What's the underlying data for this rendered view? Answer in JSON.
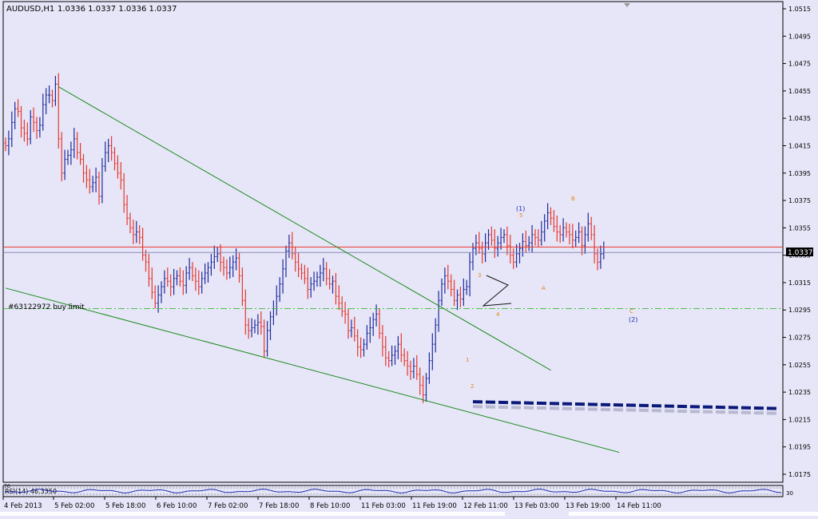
{
  "header": {
    "symbol": "AUDUSD,H1",
    "ohlc": "1.0336 1.0337 1.0336 1.0337"
  },
  "colors": {
    "background": "#e6e6f8",
    "bull_bar": "#1f2a9c",
    "bear_bar": "#e8362c",
    "trendline": "#1c8a1c",
    "resistance_line": "#e8362c",
    "buy_limit_line": "#4fbf4f",
    "support_dashes": "#0b1a7a",
    "wave_orange": "#e8860a",
    "wave_blue": "#1f2aa8",
    "axis": "#000000"
  },
  "price_axis": {
    "ticks": [
      "1.0515",
      "1.0495",
      "1.0475",
      "1.0455",
      "1.0435",
      "1.0415",
      "1.0395",
      "1.0375",
      "1.0355",
      "1.0335",
      "1.0315",
      "1.0295",
      "1.0275",
      "1.0255",
      "1.0235",
      "1.0215",
      "1.0195",
      "1.0175"
    ],
    "current_price_label": "1.0337",
    "hidden_label": "1.0338"
  },
  "time_axis": {
    "labels": [
      "4 Feb 2013",
      "5 Feb 02:00",
      "5 Feb 18:00",
      "6 Feb 10:00",
      "7 Feb 02:00",
      "7 Feb 18:00",
      "8 Feb 10:00",
      "11 Feb 03:00",
      "11 Feb 19:00",
      "12 Feb 11:00",
      "13 Feb 03:00",
      "13 Feb 19:00",
      "14 Feb 11:00"
    ]
  },
  "order_label": "#63122972 buy limit",
  "wave_labels": [
    {
      "text": "(1)",
      "color": "blue"
    },
    {
      "text": "5",
      "color": "orange"
    },
    {
      "text": "B",
      "color": "orange"
    },
    {
      "text": "3",
      "color": "orange"
    },
    {
      "text": "4",
      "color": "orange"
    },
    {
      "text": "A",
      "color": "orange"
    },
    {
      "text": "C",
      "color": "orange"
    },
    {
      "text": "(2)",
      "color": "blue"
    },
    {
      "text": "1",
      "color": "orange"
    },
    {
      "text": "2",
      "color": "orange"
    }
  ],
  "indicator": {
    "label": "RSI(14) 46.3350",
    "scale_top": "70",
    "scale_bottom": "30"
  },
  "chart_data": {
    "type": "ohlc",
    "title": "AUDUSD,H1",
    "ylim": [
      1.0165,
      1.0522
    ],
    "buy_limit_price": 1.0296,
    "resistance_price": 1.0341,
    "current_price": 1.0337,
    "series": [
      {
        "name": "AUDUSD,H1",
        "close": [
          1.0415,
          1.042,
          1.0432,
          1.0442,
          1.044,
          1.0428,
          1.0424,
          1.042,
          1.0436,
          1.0432,
          1.0426,
          1.043,
          1.0445,
          1.0452,
          1.0452,
          1.0448,
          1.046,
          1.042,
          1.0395,
          1.0405,
          1.0408,
          1.0412,
          1.042,
          1.041,
          1.0405,
          1.0395,
          1.039,
          1.0385,
          1.0388,
          1.0392,
          1.0378,
          1.04,
          1.041,
          1.0415,
          1.041,
          1.0402,
          1.0395,
          1.039,
          1.0372,
          1.0362,
          1.0355,
          1.035,
          1.0352,
          1.0348,
          1.0335,
          1.033,
          1.0318,
          1.0308,
          1.03,
          1.0306,
          1.0312,
          1.0318,
          1.0316,
          1.0312,
          1.0318,
          1.032,
          1.0316,
          1.0313,
          1.0322,
          1.0326,
          1.032,
          1.0316,
          1.0312,
          1.0318,
          1.0322,
          1.0326,
          1.033,
          1.0334,
          1.0336,
          1.033,
          1.0326,
          1.0322,
          1.0326,
          1.033,
          1.0333,
          1.032,
          1.0302,
          1.0284,
          1.028,
          1.0282,
          1.0284,
          1.0286,
          1.0283,
          1.0265,
          1.028,
          1.029,
          1.0296,
          1.0305,
          1.0314,
          1.0325,
          1.0338,
          1.0344,
          1.0336,
          1.033,
          1.0325,
          1.0322,
          1.0318,
          1.031,
          1.0314,
          1.0316,
          1.0319,
          1.0322,
          1.0325,
          1.0318,
          1.0314,
          1.0316,
          1.0305,
          1.03,
          1.0294,
          1.0292,
          1.028,
          1.0282,
          1.0276,
          1.0268,
          1.0266,
          1.027,
          1.0278,
          1.0282,
          1.0288,
          1.0292,
          1.0278,
          1.0268,
          1.026,
          1.0258,
          1.0262,
          1.0265,
          1.027,
          1.0262,
          1.0258,
          1.0254,
          1.025,
          1.0254,
          1.0248,
          1.024,
          1.0233,
          1.0245,
          1.0258,
          1.027,
          1.0284,
          1.0302,
          1.0314,
          1.032,
          1.0316,
          1.031,
          1.0302,
          1.0306,
          1.0303,
          1.031,
          1.0312,
          1.033,
          1.034,
          1.0344,
          1.034,
          1.0336,
          1.0344,
          1.035,
          1.0346,
          1.034,
          1.0344,
          1.0348,
          1.035,
          1.0342,
          1.0335,
          1.033,
          1.0336,
          1.034,
          1.0345,
          1.0342,
          1.0344,
          1.035,
          1.0348,
          1.0346,
          1.0352,
          1.036,
          1.0366,
          1.0362,
          1.0356,
          1.0352,
          1.035,
          1.0355,
          1.0352,
          1.035,
          1.0346,
          1.0348,
          1.0352,
          1.0342,
          1.035,
          1.0358,
          1.035,
          1.0336,
          1.033,
          1.0336,
          1.0337
        ]
      }
    ],
    "trendlines": [
      {
        "name": "upper-falling",
        "from": {
          "index": 17,
          "price": 1.0458
        },
        "to": {
          "index": 175,
          "price": 1.0251
        }
      },
      {
        "name": "lower-falling",
        "from": {
          "index": 0,
          "price": 1.0311
        },
        "to": {
          "index": 197,
          "price": 1.0191
        }
      },
      {
        "name": "support-dashes",
        "from": {
          "index": 150,
          "price": 1.0228
        },
        "to": {
          "index": 255,
          "price": 1.0223
        }
      }
    ],
    "ylabel": "",
    "xlabel": ""
  }
}
